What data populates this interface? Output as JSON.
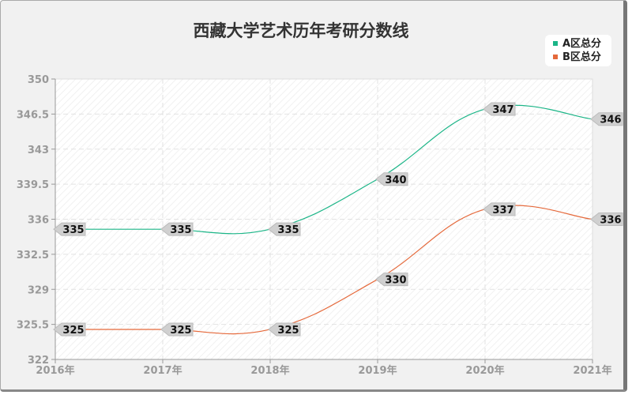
{
  "chart_data": {
    "type": "line",
    "title": "西藏大学艺术历年考研分数线",
    "categories": [
      "2016年",
      "2017年",
      "2018年",
      "2019年",
      "2020年",
      "2021年"
    ],
    "series": [
      {
        "name": "A区总分",
        "color": "#1bb587",
        "values": [
          335,
          335,
          335,
          340,
          347,
          346
        ]
      },
      {
        "name": "B区总分",
        "color": "#e5693b",
        "values": [
          325,
          325,
          325,
          330,
          337,
          336
        ]
      }
    ],
    "ylim": [
      322,
      350
    ],
    "yticks": [
      "350",
      "346.5",
      "343",
      "339.5",
      "336",
      "332.5",
      "329",
      "325.5",
      "322"
    ],
    "grid": true,
    "legend": "top-right",
    "xlabel": "",
    "ylabel": ""
  }
}
